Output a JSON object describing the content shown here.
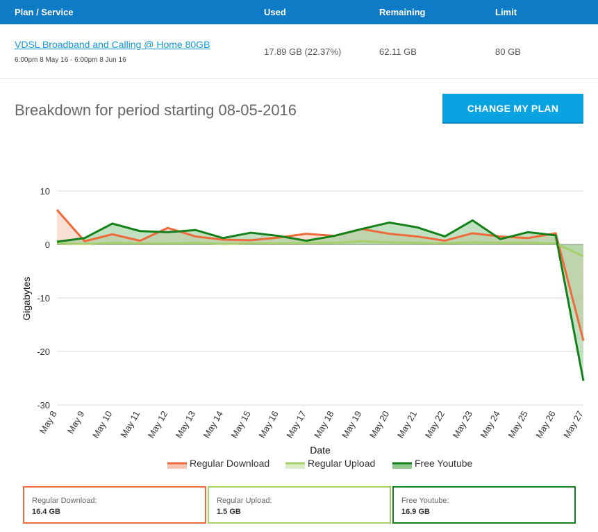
{
  "table": {
    "headers": [
      "Plan / Service",
      "Used",
      "Remaining",
      "Limit"
    ],
    "plan_name": "VDSL Broadband and Calling @ Home 80GB",
    "plan_period": "6:00pm 8 May 16 - 6:00pm 8 Jun 16",
    "used": "17.89 GB (22.37%)",
    "remaining": "62.11 GB",
    "limit": "80 GB"
  },
  "breakdown_title": "Breakdown for period starting 08-05-2016",
  "change_plan_label": "CHANGE MY PLAN",
  "chart_data": {
    "type": "area",
    "xlabel": "Date",
    "ylabel": "Gigabytes",
    "ylim": [
      -30,
      10
    ],
    "yticks": [
      10,
      0,
      -10,
      -20,
      -30
    ],
    "categories": [
      "May 8",
      "May 9",
      "May 10",
      "May 11",
      "May 12",
      "May 13",
      "May 14",
      "May 15",
      "May 16",
      "May 17",
      "May 18",
      "May 19",
      "May 20",
      "May 21",
      "May 22",
      "May 23",
      "May 24",
      "May 25",
      "May 26",
      "May 27"
    ],
    "series": [
      {
        "name": "Regular Download",
        "color": "#ee6a3b",
        "fill": "#f6c4b0",
        "values": [
          6.5,
          0.6,
          1.9,
          0.7,
          3.1,
          1.5,
          0.9,
          0.8,
          1.3,
          2.0,
          1.6,
          2.9,
          2.0,
          1.5,
          0.7,
          2.1,
          1.5,
          1.2,
          2.1,
          -18.0
        ]
      },
      {
        "name": "Regular Upload",
        "color": "#a5cf68",
        "fill": "#dbecc4",
        "values": [
          0.2,
          0.1,
          0.3,
          0.2,
          0.2,
          0.3,
          0.1,
          0.2,
          0.2,
          0.3,
          0.3,
          0.6,
          0.4,
          0.3,
          0.2,
          0.4,
          0.3,
          0.3,
          0.2,
          -2.2
        ]
      },
      {
        "name": "Free Youtube",
        "color": "#14801a",
        "fill": "#8fc98f",
        "values": [
          0.5,
          1.2,
          3.9,
          2.5,
          2.3,
          2.7,
          1.2,
          2.2,
          1.6,
          0.7,
          1.6,
          2.9,
          4.1,
          3.2,
          1.5,
          4.5,
          1.0,
          2.3,
          1.7,
          -25.5
        ]
      }
    ],
    "legend": "bottom-center",
    "grid": true
  },
  "summary": [
    {
      "label": "Regular Download:",
      "value": "16.4 GB",
      "color": "#ee6a3b"
    },
    {
      "label": "Regular Upload:",
      "value": "1.5 GB",
      "color": "#a5cf68"
    },
    {
      "label": "Free Youtube:",
      "value": "16.9 GB",
      "color": "#14801a"
    }
  ]
}
